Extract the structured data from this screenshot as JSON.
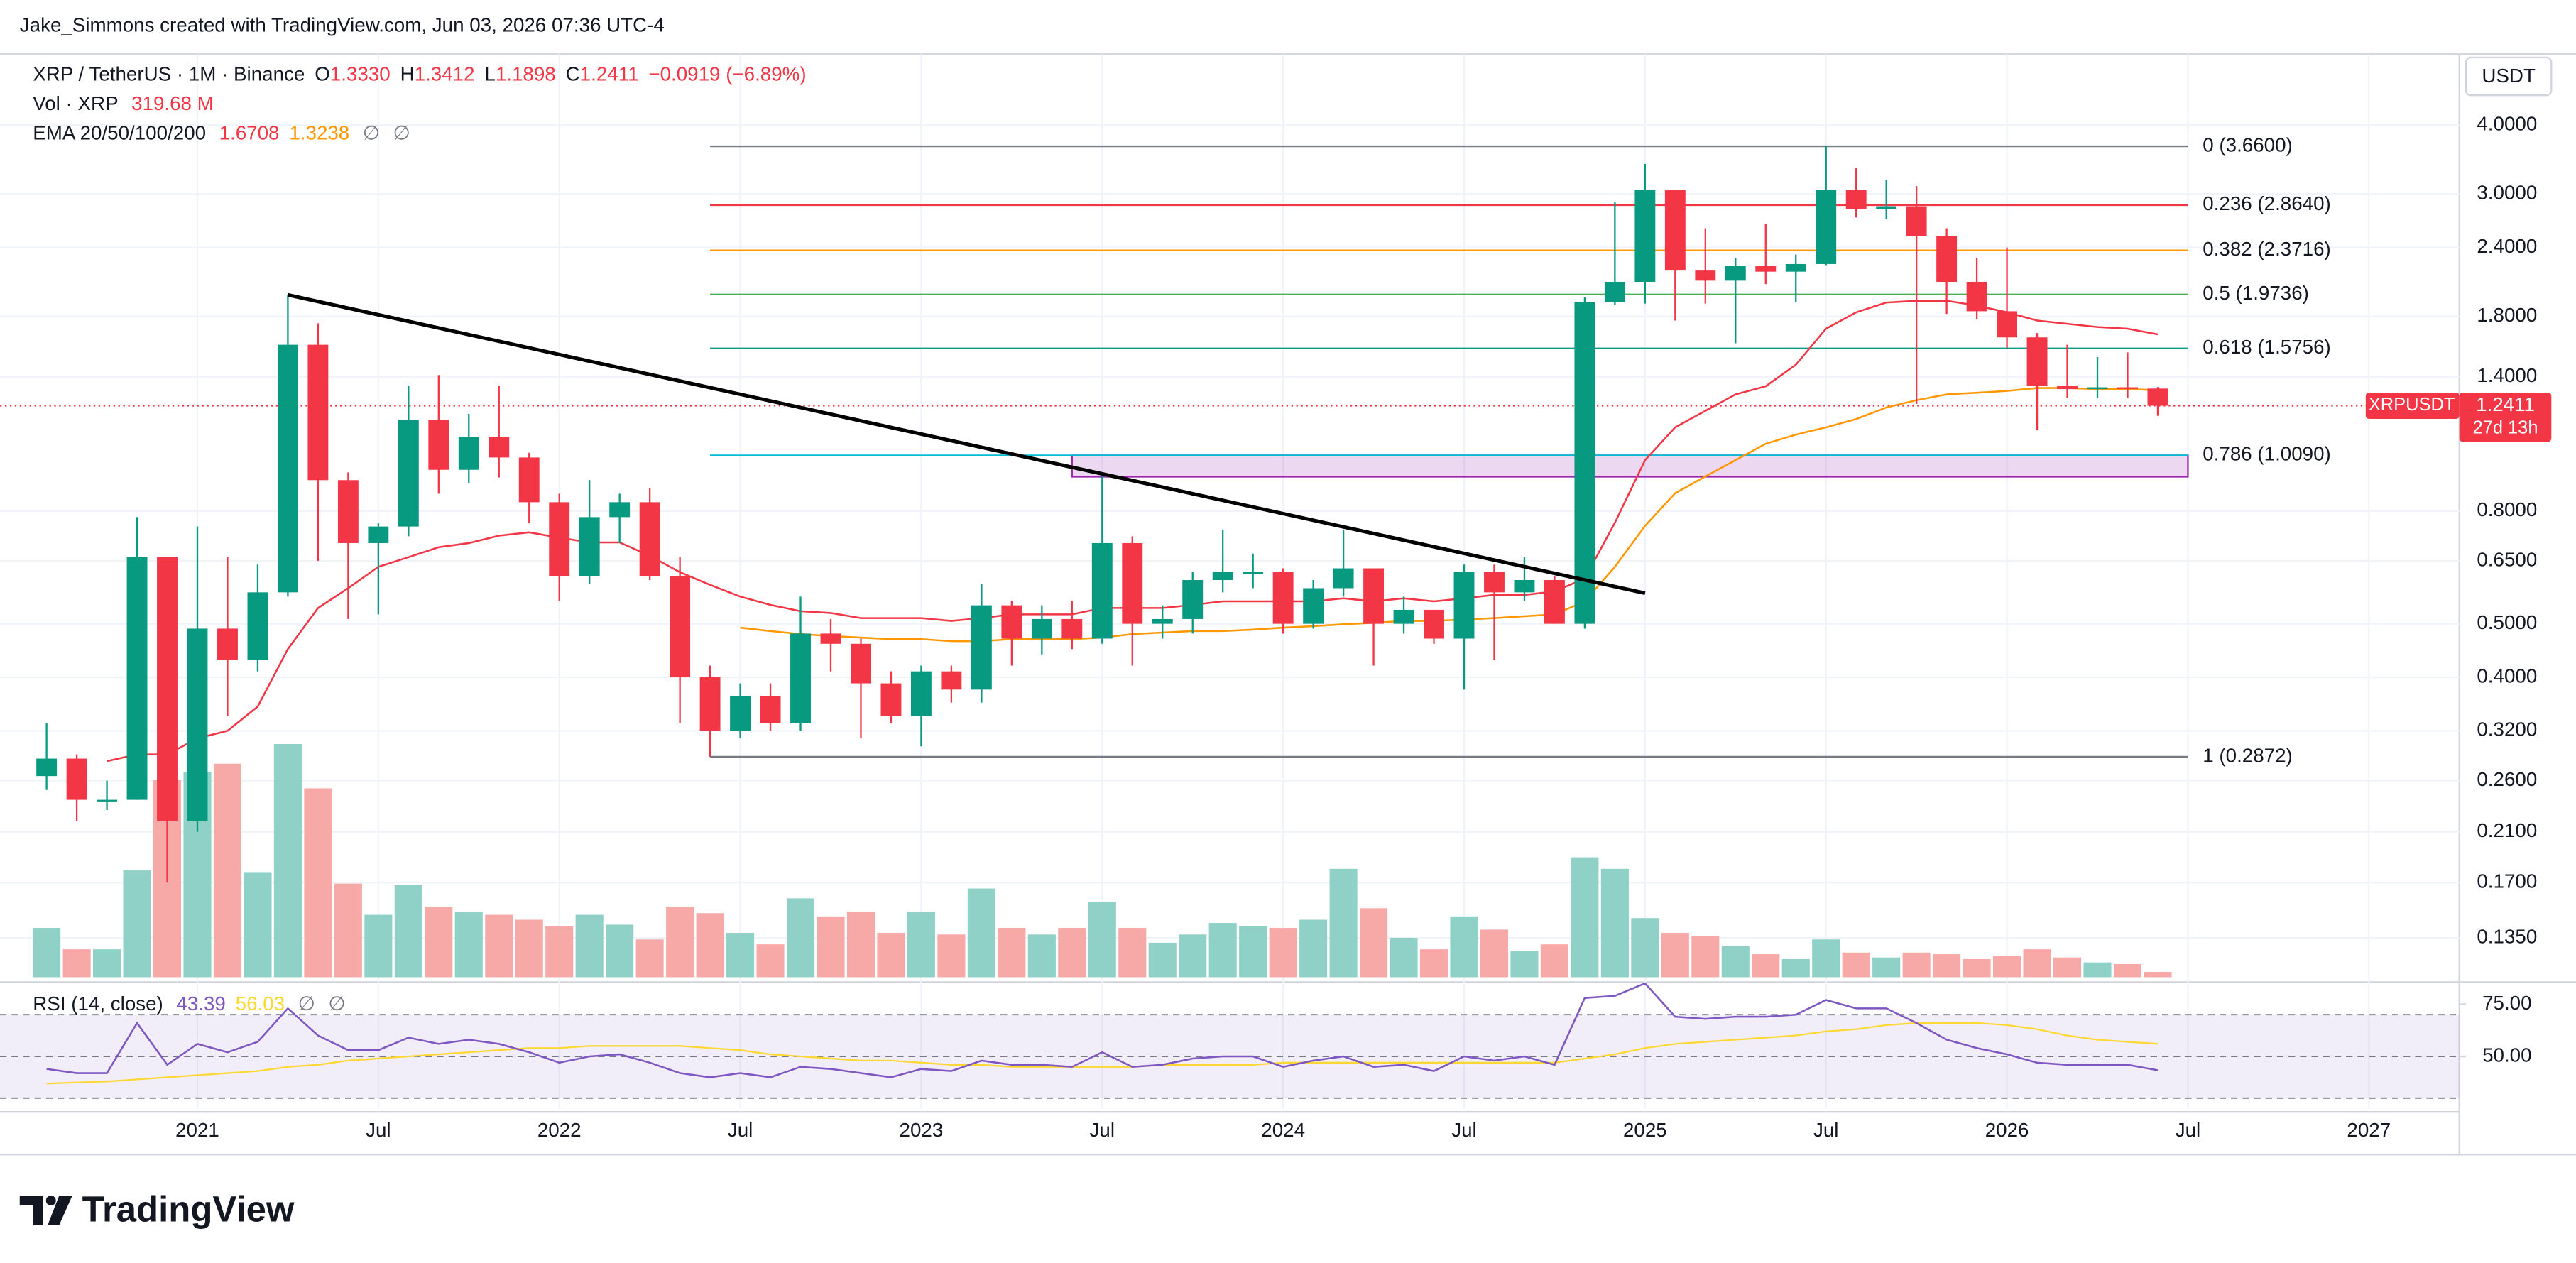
{
  "chart_data": {
    "type": "candlestick",
    "attribution": "Jake_Simmons created with TradingView.com, Jun 03, 2026 07:36 UTC-4",
    "title": "XRP / TetherUS · 1M · Binance",
    "ohlc_legend": [
      [
        "O",
        "1.3330"
      ],
      [
        "H",
        "1.3412"
      ],
      [
        "L",
        "1.1898"
      ],
      [
        "C",
        "1.2411"
      ]
    ],
    "change": "−0.0919 (−6.89%)",
    "volume_legend": [
      "Vol · XRP",
      "319.68 M"
    ],
    "ema_legend": [
      "EMA 20/50/100/200",
      "1.6708",
      "1.3238",
      "∅",
      "∅"
    ],
    "rsi_legend": [
      "RSI (14, close)",
      "43.39",
      "56.03",
      "∅",
      "∅"
    ],
    "axis_unit": "USDT",
    "logo": "TradingView",
    "x": [
      "2020-08",
      "2020-09",
      "2020-10",
      "2020-11",
      "2020-12",
      "2021-01",
      "2021-02",
      "2021-03",
      "2021-04",
      "2021-05",
      "2021-06",
      "2021-07",
      "2021-08",
      "2021-09",
      "2021-10",
      "2021-11",
      "2021-12",
      "2022-01",
      "2022-02",
      "2022-03",
      "2022-04",
      "2022-05",
      "2022-06",
      "2022-07",
      "2022-08",
      "2022-09",
      "2022-10",
      "2022-11",
      "2022-12",
      "2023-01",
      "2023-02",
      "2023-03",
      "2023-04",
      "2023-05",
      "2023-06",
      "2023-07",
      "2023-08",
      "2023-09",
      "2023-10",
      "2023-11",
      "2023-12",
      "2024-01",
      "2024-02",
      "2024-03",
      "2024-04",
      "2024-05",
      "2024-06",
      "2024-07",
      "2024-08",
      "2024-09",
      "2024-10",
      "2024-11",
      "2024-12",
      "2025-01",
      "2025-02",
      "2025-03",
      "2025-04",
      "2025-05",
      "2025-06",
      "2025-07",
      "2025-08",
      "2025-09",
      "2025-10",
      "2025-11",
      "2025-12",
      "2026-01",
      "2026-02",
      "2026-03",
      "2026-04",
      "2026-05",
      "2026-06"
    ],
    "open": [
      0.265,
      0.285,
      0.24,
      0.24,
      0.66,
      0.22,
      0.49,
      0.43,
      0.57,
      1.6,
      0.91,
      0.7,
      0.75,
      1.17,
      0.95,
      1.09,
      1.0,
      0.83,
      0.61,
      0.78,
      0.83,
      0.61,
      0.4,
      0.32,
      0.37,
      0.33,
      0.48,
      0.46,
      0.39,
      0.34,
      0.41,
      0.38,
      0.54,
      0.47,
      0.51,
      0.47,
      0.7,
      0.5,
      0.51,
      0.6,
      0.62,
      0.62,
      0.5,
      0.58,
      0.63,
      0.5,
      0.53,
      0.47,
      0.62,
      0.57,
      0.6,
      0.5,
      1.91,
      2.08,
      3.05,
      2.18,
      2.09,
      2.22,
      2.17,
      2.24,
      3.05,
      2.82,
      2.85,
      2.52,
      2.08,
      1.84,
      1.65,
      1.35,
      1.33,
      1.34,
      1.333
    ],
    "high": [
      0.33,
      0.29,
      0.26,
      0.78,
      0.66,
      0.75,
      0.66,
      0.64,
      1.97,
      1.75,
      0.94,
      0.76,
      1.35,
      1.41,
      1.2,
      1.35,
      1.02,
      0.86,
      0.91,
      0.86,
      0.88,
      0.66,
      0.42,
      0.39,
      0.39,
      0.56,
      0.51,
      0.47,
      0.41,
      0.42,
      0.42,
      0.59,
      0.55,
      0.54,
      0.55,
      0.94,
      0.72,
      0.54,
      0.62,
      0.74,
      0.67,
      0.63,
      0.6,
      0.74,
      0.63,
      0.56,
      0.53,
      0.64,
      0.64,
      0.66,
      0.61,
      1.95,
      2.9,
      3.4,
      3.05,
      2.6,
      2.3,
      2.65,
      2.33,
      3.66,
      3.34,
      3.18,
      3.1,
      2.6,
      2.3,
      2.4,
      1.68,
      1.6,
      1.52,
      1.55,
      1.3412
    ],
    "low": [
      0.25,
      0.22,
      0.23,
      0.24,
      0.17,
      0.21,
      0.34,
      0.41,
      0.56,
      0.65,
      0.51,
      0.52,
      0.72,
      0.86,
      0.9,
      0.92,
      0.76,
      0.55,
      0.59,
      0.7,
      0.6,
      0.33,
      0.2872,
      0.31,
      0.32,
      0.32,
      0.41,
      0.31,
      0.33,
      0.3,
      0.36,
      0.36,
      0.42,
      0.44,
      0.45,
      0.46,
      0.42,
      0.47,
      0.48,
      0.57,
      0.58,
      0.48,
      0.49,
      0.56,
      0.42,
      0.48,
      0.46,
      0.38,
      0.43,
      0.55,
      0.5,
      0.49,
      1.89,
      1.9,
      1.77,
      1.9,
      1.61,
      2.06,
      1.91,
      2.23,
      2.72,
      2.7,
      1.25,
      1.82,
      1.78,
      1.58,
      1.12,
      1.28,
      1.28,
      1.28,
      1.1898
    ],
    "close": [
      0.285,
      0.24,
      0.24,
      0.66,
      0.22,
      0.49,
      0.43,
      0.57,
      1.6,
      0.91,
      0.7,
      0.75,
      1.17,
      0.95,
      1.09,
      1.0,
      0.83,
      0.61,
      0.78,
      0.83,
      0.61,
      0.4,
      0.32,
      0.37,
      0.33,
      0.48,
      0.46,
      0.39,
      0.34,
      0.41,
      0.38,
      0.54,
      0.47,
      0.51,
      0.47,
      0.7,
      0.5,
      0.51,
      0.6,
      0.62,
      0.62,
      0.5,
      0.58,
      0.63,
      0.5,
      0.53,
      0.47,
      0.62,
      0.57,
      0.6,
      0.5,
      1.91,
      2.08,
      3.05,
      2.18,
      2.09,
      2.22,
      2.17,
      2.24,
      3.05,
      2.82,
      2.85,
      2.52,
      2.08,
      1.84,
      1.65,
      1.35,
      1.33,
      1.34,
      1.333,
      1.2411
    ],
    "volume": [
      3000,
      1700,
      1700,
      6500,
      12000,
      12500,
      13000,
      6400,
      14200,
      11500,
      5700,
      3800,
      5600,
      4300,
      4000,
      3800,
      3500,
      3100,
      3800,
      3200,
      2300,
      4300,
      3900,
      2700,
      2000,
      4800,
      3700,
      4000,
      2700,
      4000,
      2600,
      5400,
      3000,
      2600,
      3000,
      4600,
      3000,
      2100,
      2600,
      3300,
      3100,
      3000,
      3500,
      6600,
      4200,
      2400,
      1700,
      3700,
      2900,
      1600,
      2000,
      7300,
      6600,
      3600,
      2700,
      2500,
      1900,
      1400,
      1100,
      2300,
      1500,
      1200,
      1500,
      1400,
      1100,
      1300,
      1700,
      1200,
      900,
      800,
      319.68
    ],
    "up_color": "#089981",
    "down_color": "#f23645",
    "vol_up_color": "#8fd0c7",
    "vol_down_color": "#f7a9a7",
    "log_scale": true,
    "grid": true,
    "ylim": [
      0.113,
      5.3
    ],
    "yticks": [
      {
        "value": 4,
        "label": "4.0000"
      },
      {
        "value": 3,
        "label": "3.0000"
      },
      {
        "value": 2.4,
        "label": "2.4000"
      },
      {
        "value": 1.8,
        "label": "1.8000"
      },
      {
        "value": 1.4,
        "label": "1.4000"
      },
      {
        "value": 0.8,
        "label": "0.8000"
      },
      {
        "value": 0.65,
        "label": "0.6500"
      },
      {
        "value": 0.5,
        "label": "0.5000"
      },
      {
        "value": 0.4,
        "label": "0.4000"
      },
      {
        "value": 0.32,
        "label": "0.3200"
      },
      {
        "value": 0.26,
        "label": "0.2600"
      },
      {
        "value": 0.21,
        "label": "0.2100"
      },
      {
        "value": 0.17,
        "label": "0.1700"
      },
      {
        "value": 0.135,
        "label": "0.1350"
      }
    ],
    "xlim": [
      "2020-07",
      "2027-04"
    ],
    "xticks": [
      {
        "value": "2021-01",
        "label": "2021"
      },
      {
        "value": "2021-07",
        "label": "Jul"
      },
      {
        "value": "2022-01",
        "label": "2022"
      },
      {
        "value": "2022-07",
        "label": "Jul"
      },
      {
        "value": "2023-01",
        "label": "2023"
      },
      {
        "value": "2023-07",
        "label": "Jul"
      },
      {
        "value": "2024-01",
        "label": "2024"
      },
      {
        "value": "2024-07",
        "label": "Jul"
      },
      {
        "value": "2025-01",
        "label": "2025"
      },
      {
        "value": "2025-07",
        "label": "Jul"
      },
      {
        "value": "2026-01",
        "label": "2026"
      },
      {
        "value": "2026-07",
        "label": "Jul"
      },
      {
        "value": "2027-01",
        "label": "2027"
      }
    ],
    "vol_ylim": [
      0,
      15000
    ],
    "ema_series": [
      {
        "color": "#f23645",
        "values": [
          null,
          null,
          0.282,
          0.29,
          0.29,
          0.31,
          0.32,
          0.354,
          0.45,
          0.534,
          0.58,
          0.634,
          0.66,
          0.688,
          0.7,
          0.722,
          0.732,
          0.716,
          0.702,
          0.702,
          0.664,
          0.62,
          0.588,
          0.56,
          0.541,
          0.527,
          0.523,
          0.512,
          0.512,
          0.512,
          0.506,
          0.512,
          0.52,
          0.52,
          0.52,
          0.534,
          0.534,
          0.534,
          0.541,
          0.549,
          0.549,
          0.549,
          0.549,
          0.556,
          0.549,
          0.556,
          0.549,
          0.556,
          0.564,
          0.564,
          0.572,
          0.604,
          0.762,
          0.989,
          1.134,
          1.215,
          1.301,
          1.346,
          1.472,
          1.711,
          1.832,
          1.908,
          1.922,
          1.922,
          1.884,
          1.832,
          1.77,
          1.746,
          1.723,
          1.711,
          1.6708
        ]
      },
      {
        "color": "#ff9800",
        "values": [
          null,
          null,
          null,
          null,
          null,
          null,
          null,
          null,
          null,
          null,
          null,
          null,
          null,
          null,
          null,
          null,
          null,
          null,
          null,
          null,
          null,
          null,
          null,
          0.492,
          0.485,
          0.479,
          0.475,
          0.472,
          0.469,
          0.469,
          0.465,
          0.465,
          0.469,
          0.469,
          0.469,
          0.472,
          0.479,
          0.482,
          0.485,
          0.485,
          0.488,
          0.492,
          0.495,
          0.499,
          0.502,
          0.506,
          0.506,
          0.509,
          0.512,
          0.516,
          0.52,
          0.549,
          0.634,
          0.752,
          0.862,
          0.924,
          0.989,
          1.059,
          1.1,
          1.134,
          1.174,
          1.232,
          1.27,
          1.301,
          1.31,
          1.32,
          1.336,
          1.336,
          1.33,
          1.33,
          1.3238
        ]
      }
    ],
    "price_line": {
      "symbol": "XRPUSDT",
      "price": "1.2411",
      "countdown": "27d 13h",
      "color": "#f23645"
    },
    "fib": {
      "from": "2022-06",
      "to": "2026-07",
      "levels": [
        {
          "label": "0 (3.6600)",
          "value": 3.66,
          "color": "#787b86"
        },
        {
          "label": "0.236 (2.8640)",
          "value": 2.864,
          "color": "#f23645"
        },
        {
          "label": "0.382 (2.3716)",
          "value": 2.3716,
          "color": "#ff9800"
        },
        {
          "label": "0.5 (1.9736)",
          "value": 1.9736,
          "color": "#4caf50"
        },
        {
          "label": "0.618 (1.5756)",
          "value": 1.5756,
          "color": "#089981"
        },
        {
          "label": "0.786 (1.0090)",
          "value": 1.009,
          "color": "#00bcd4"
        },
        {
          "label": "1 (0.2872)",
          "value": 0.2872,
          "color": "#787b86"
        }
      ]
    },
    "zone": {
      "from": "2023-06",
      "to": "2026-07",
      "top": 1.009,
      "bottom": 0.923,
      "color": "#9c27b0"
    },
    "trendline": {
      "from": "2021-04",
      "from_price": 1.97,
      "to": "2025-01",
      "to_price": 0.568,
      "color": "#000000"
    },
    "rsi": {
      "color": "#7e57c2",
      "ma_color": "#fdd835",
      "values": [
        44,
        42,
        42,
        66,
        46,
        56,
        52,
        57,
        73,
        60,
        53,
        53,
        59,
        56,
        58,
        56,
        52,
        47,
        50,
        51,
        47,
        42,
        40,
        42,
        40,
        45,
        44,
        42,
        40,
        44,
        43,
        48,
        46,
        46,
        45,
        52,
        45,
        46,
        49,
        50,
        50,
        45,
        48,
        50,
        45,
        46,
        43,
        50,
        48,
        50,
        46,
        78,
        79,
        85,
        69,
        68,
        69,
        69,
        70,
        77,
        73,
        73,
        66,
        58,
        54,
        51,
        47,
        46,
        46,
        46,
        43.39
      ],
      "ma": [
        37,
        37.5,
        38,
        39,
        40,
        41,
        42,
        43,
        45,
        46,
        48,
        49,
        50,
        51,
        52,
        53,
        54,
        54,
        55,
        55,
        55,
        55,
        54,
        53,
        51,
        50,
        49,
        48,
        48,
        47,
        46,
        46,
        45,
        45,
        45,
        45,
        45,
        46,
        46,
        46,
        46,
        47,
        47,
        47,
        47,
        47,
        47,
        47,
        47,
        47,
        47,
        49,
        51,
        54,
        56,
        57,
        58,
        59,
        60,
        62,
        63,
        65,
        66,
        66,
        66,
        65,
        63,
        60,
        58,
        57,
        56.03
      ],
      "ylim": [
        25,
        84
      ],
      "yticks": [
        {
          "value": 75,
          "label": "75.00"
        },
        {
          "value": 50,
          "label": "50.00"
        }
      ],
      "levels": [
        70,
        50,
        30
      ]
    }
  }
}
